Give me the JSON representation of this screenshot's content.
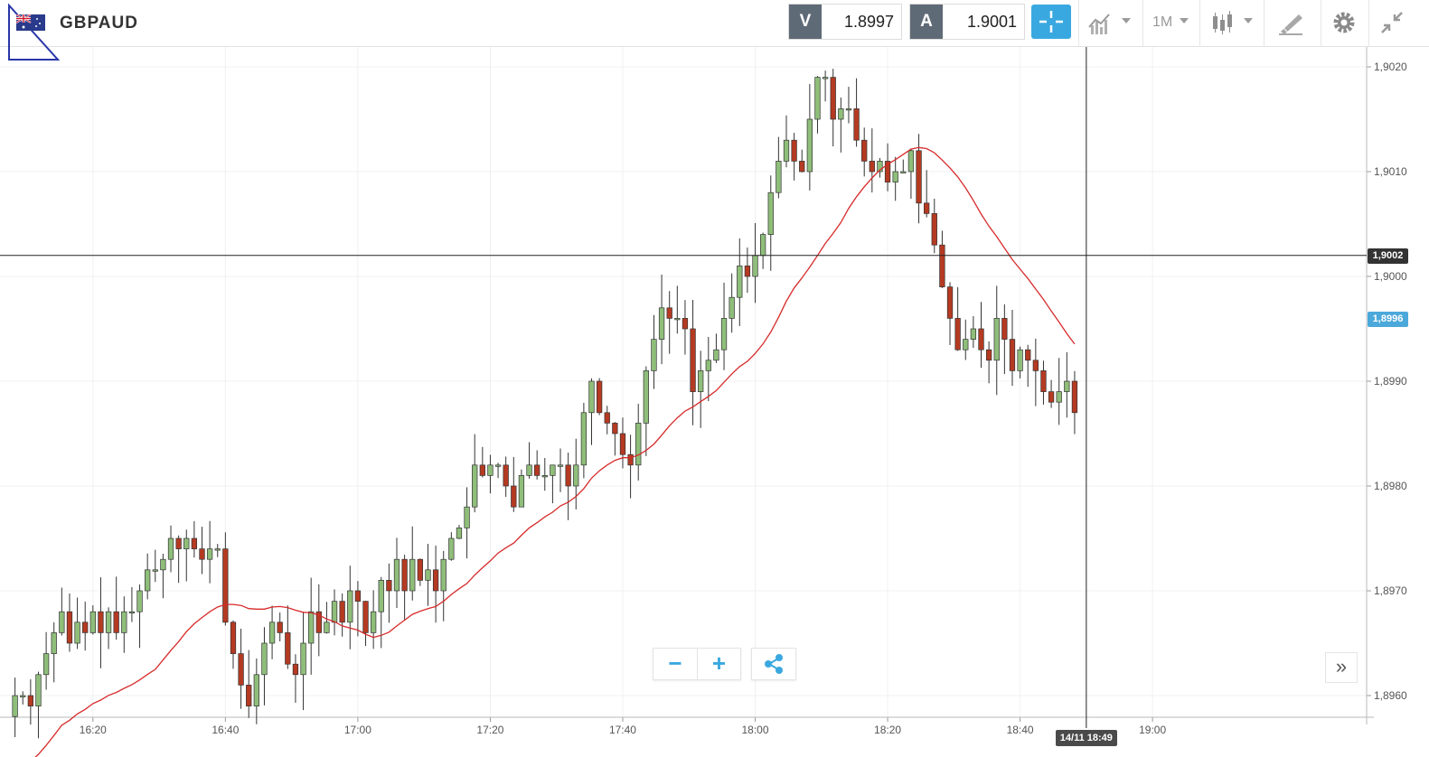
{
  "header": {
    "symbol": "GBPAUD",
    "flag_icon": "gbp-aud-flag-icon",
    "sell": {
      "tag": "V",
      "price": "1.8997"
    },
    "buy": {
      "tag": "A",
      "price": "1.9001"
    },
    "interval_label": "1M",
    "tools": [
      "crosshair-icon",
      "indicators-icon",
      "chevron-down-icon",
      "candlestick-icon",
      "drawing-tools-icon",
      "gear-icon",
      "collapse-icon"
    ]
  },
  "chart": {
    "controls": {
      "zoom_out_label": "−",
      "zoom_in_label": "+",
      "scroll_end_label": "»"
    },
    "crosshair": {
      "time_label": "14/11 18:49",
      "price_label": "1,9002",
      "price": 1.9002,
      "time_index": 138.5
    },
    "ma_price_label": "1,8996",
    "colors": {
      "up": "#8fbe7a",
      "down": "#b53a22",
      "ma": "#d72a2a",
      "grid": "#f0f0f0"
    }
  },
  "chart_data": {
    "type": "candlestick",
    "interval": "1 minute",
    "y_ticks": [
      "1,8960",
      "1,8970",
      "1,8980",
      "1,8990",
      "1,9000",
      "1,9010",
      "1,9020"
    ],
    "y_tick_values": [
      1.896,
      1.897,
      1.898,
      1.899,
      1.9,
      1.901,
      1.902
    ],
    "x_ticks": [
      "16:20",
      "16:40",
      "17:00",
      "17:20",
      "17:40",
      "18:00",
      "18:20",
      "18:40",
      "19:00"
    ],
    "x_tick_index": [
      11,
      28,
      45,
      62,
      79,
      96,
      113,
      130,
      147
    ],
    "ylim": [
      1.8957,
      1.9021
    ],
    "close_path": [
      1.8958,
      1.896,
      1.896,
      1.8959,
      1.8962,
      1.8964,
      1.8966,
      1.8968,
      1.8965,
      1.8967,
      1.8966,
      1.8968,
      1.8966,
      1.8968,
      1.8966,
      1.8968,
      1.8968,
      1.897,
      1.8972,
      1.8972,
      1.8973,
      1.8975,
      1.8974,
      1.8975,
      1.8974,
      1.8973,
      1.8974,
      1.8974,
      1.8967,
      1.8964,
      1.8961,
      1.8959,
      1.8962,
      1.8965,
      1.8967,
      1.8966,
      1.8963,
      1.8962,
      1.8965,
      1.8968,
      1.8966,
      1.8967,
      1.8969,
      1.8967,
      1.897,
      1.8969,
      1.8966,
      1.8968,
      1.8971,
      1.897,
      1.8973,
      1.897,
      1.8973,
      1.8971,
      1.8972,
      1.897,
      1.8973,
      1.8975,
      1.8976,
      1.8978,
      1.8982,
      1.8981,
      1.8982,
      1.8982,
      1.898,
      1.8978,
      1.8981,
      1.8982,
      1.8981,
      1.8981,
      1.8982,
      1.8982,
      1.898,
      1.8982,
      1.8987,
      1.899,
      1.8987,
      1.8986,
      1.8985,
      1.8983,
      1.8982,
      1.8986,
      1.8991,
      1.8994,
      1.8997,
      1.8996,
      1.8996,
      1.8995,
      1.8989,
      1.8991,
      1.8992,
      1.8993,
      1.8996,
      1.8998,
      1.9001,
      1.9,
      1.9002,
      1.9004,
      1.9008,
      1.9011,
      1.9013,
      1.9011,
      1.901,
      1.9015,
      1.9019,
      1.9019,
      1.9015,
      1.9016,
      1.9016,
      1.9013,
      1.9011,
      1.901,
      1.9011,
      1.9009,
      1.901,
      1.901,
      1.9012,
      1.9007,
      1.9006,
      1.9003,
      1.8999,
      1.8996,
      1.8993,
      1.8994,
      1.8995,
      1.8993,
      1.8992,
      1.8996,
      1.8994,
      1.8991,
      1.8993,
      1.8992,
      1.8991,
      1.8989,
      1.8988,
      1.8989,
      1.899,
      1.8987
    ]
  }
}
